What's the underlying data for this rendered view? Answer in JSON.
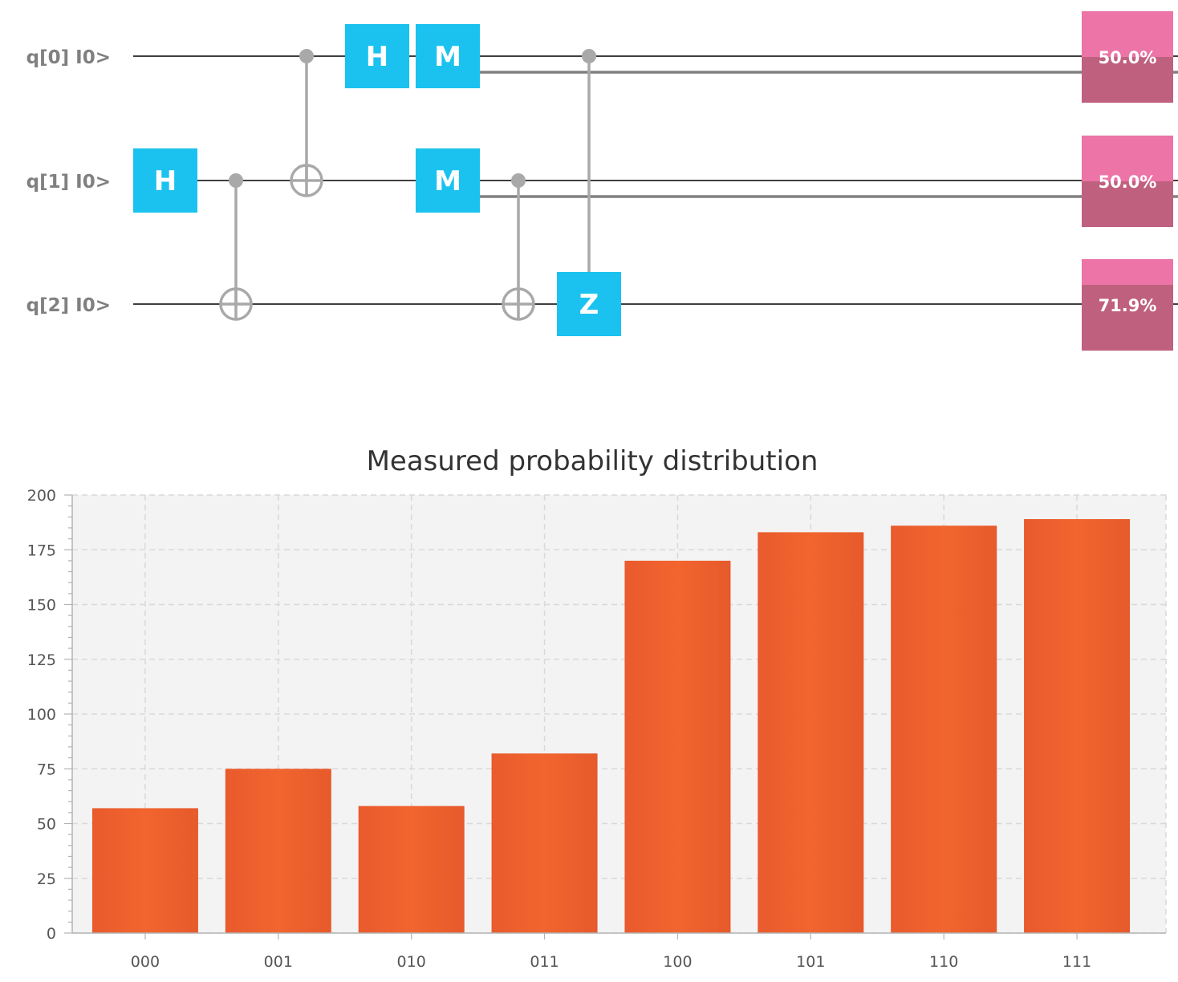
{
  "circuit": {
    "qubits": [
      {
        "label": "q[0] I0>",
        "probability": "50.0%",
        "probability_value": 0.5
      },
      {
        "label": "q[1] I0>",
        "probability": "50.0%",
        "probability_value": 0.5
      },
      {
        "label": "q[2] I0>",
        "probability": "71.9%",
        "probability_value": 0.719
      }
    ],
    "gates": [
      {
        "type": "gate",
        "label": "H",
        "qubit": 1,
        "step": 0
      },
      {
        "type": "cnot",
        "control": 1,
        "target": 2,
        "step": 1
      },
      {
        "type": "cnot",
        "control": 0,
        "target": 1,
        "step": 2
      },
      {
        "type": "gate",
        "label": "H",
        "qubit": 0,
        "step": 3
      },
      {
        "type": "gate",
        "label": "M",
        "qubit": 0,
        "step": 4
      },
      {
        "type": "gate",
        "label": "M",
        "qubit": 1,
        "step": 4
      },
      {
        "type": "cnot",
        "control": 1,
        "target": 2,
        "step": 5
      },
      {
        "type": "cz",
        "control": 0,
        "target": 2,
        "label": "Z",
        "step": 6
      }
    ],
    "colors": {
      "gate": "#1bc2ef",
      "control": "#a9a9a9",
      "wire": "#000000",
      "classical_wire": "#808080",
      "prob_top": "#ec74a7",
      "prob_fill": "#c0607f"
    }
  },
  "chart_data": {
    "type": "bar",
    "title": "Measured probability distribution",
    "categories": [
      "000",
      "001",
      "010",
      "011",
      "100",
      "101",
      "110",
      "111"
    ],
    "values": [
      57,
      75,
      58,
      82,
      170,
      183,
      186,
      189
    ],
    "ylim": [
      0,
      200
    ],
    "yticks": [
      0,
      25,
      50,
      75,
      100,
      125,
      150,
      175,
      200
    ],
    "grid": true,
    "bar_color": "#ee5f2e",
    "plot_background": "#f3f3f3"
  }
}
